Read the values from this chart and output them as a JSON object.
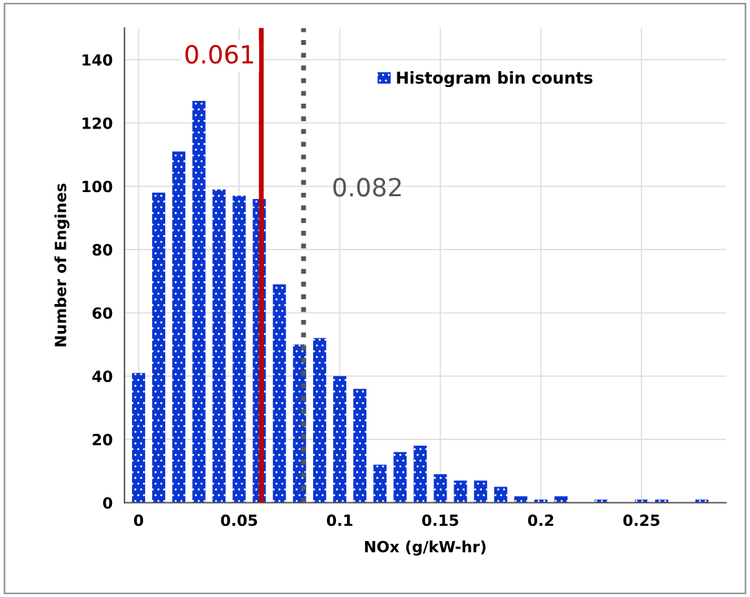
{
  "chart_data": {
    "type": "bar",
    "xlabel": "NOx (g/kW-hr)",
    "ylabel": "Number of Engines",
    "x": [
      0,
      0.01,
      0.02,
      0.03,
      0.04,
      0.05,
      0.06,
      0.07,
      0.08,
      0.09,
      0.1,
      0.11,
      0.12,
      0.13,
      0.14,
      0.15,
      0.16,
      0.17,
      0.18,
      0.19,
      0.2,
      0.21,
      0.22,
      0.23,
      0.24,
      0.25,
      0.26,
      0.27,
      0.28
    ],
    "series": [
      {
        "name": "Histogram bin counts",
        "color": "#0a36d0",
        "values": [
          41,
          98,
          111,
          127,
          99,
          97,
          96,
          69,
          50,
          52,
          40,
          36,
          12,
          16,
          18,
          9,
          7,
          7,
          5,
          2,
          1,
          2,
          0,
          1,
          0,
          1,
          1,
          0,
          1
        ]
      }
    ],
    "xlim": [
      -0.007,
      0.292
    ],
    "xticks": [
      0,
      0.05,
      0.1,
      0.15,
      0.2,
      0.25
    ],
    "ylim": [
      0,
      150
    ],
    "yticks": [
      0,
      20,
      40,
      60,
      80,
      100,
      120,
      140
    ],
    "ref_lines": [
      {
        "axis": "x",
        "value": 0.061,
        "label": "0.061",
        "color": "#c00000",
        "line_style": "solid"
      },
      {
        "axis": "x",
        "value": 0.082,
        "label": "0.082",
        "color": "#555555",
        "line_style": "dotted"
      }
    ],
    "grid": true,
    "legend": "top"
  }
}
